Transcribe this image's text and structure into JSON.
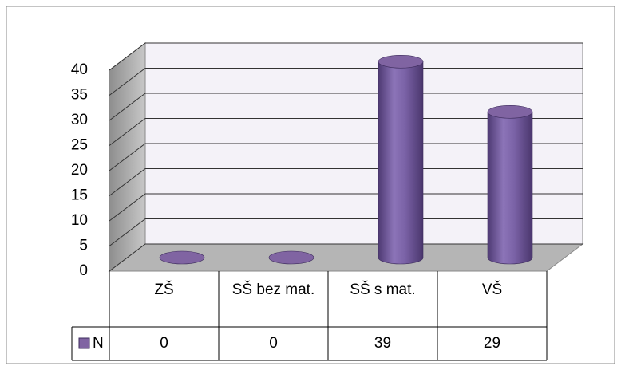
{
  "chart_data": {
    "type": "bar3d",
    "categories": [
      "ZŠ",
      "SŠ bez mat.",
      "SŠ s mat.",
      "VŠ"
    ],
    "series": [
      {
        "name": "N",
        "color": "#8064a2",
        "values": [
          0,
          0,
          39,
          29
        ]
      }
    ],
    "ylim": [
      0,
      40
    ],
    "yticks": [
      0,
      5,
      10,
      15,
      20,
      25,
      30,
      35,
      40
    ],
    "grid": true,
    "data_table": true
  }
}
